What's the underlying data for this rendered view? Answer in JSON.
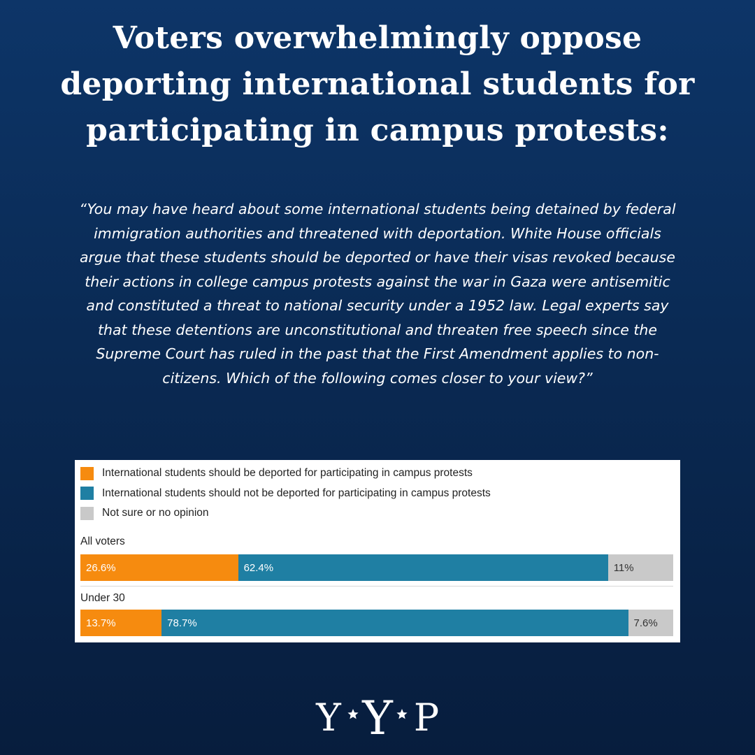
{
  "title": "Voters overwhelmingly oppose deporting international students for participating in campus protests:",
  "question": "“You may have heard about some international students being detained by federal immigration authorities and threatened with deportation. White House officials argue that these students should be deported or have their visas revoked because their actions in college campus protests against the war in Gaza were antisemitic and constituted a threat to national security under a 1952 law. Legal experts say that these detentions are unconstitutional and threaten free speech since the Supreme Court has ruled in the past that the First Amendment applies to non-citizens. Which of the following comes closer to your view?”",
  "chart_data": {
    "type": "bar",
    "orientation": "horizontal-stacked",
    "legend_position": "top-left",
    "series": [
      {
        "name": "International students should be deported for participating in campus protests",
        "color": "#f68b0f",
        "values": [
          26.6,
          13.7
        ],
        "labels": [
          "26.6%",
          "13.7%"
        ]
      },
      {
        "name": "International students should not be deported for participating in campus protests",
        "color": "#1f7fa3",
        "values": [
          62.4,
          78.7
        ],
        "labels": [
          "62.4%",
          "78.7%"
        ]
      },
      {
        "name": "Not sure or no opinion",
        "color": "#c9c9c9",
        "values": [
          11,
          7.6
        ],
        "labels": [
          "11%",
          "7.6%"
        ]
      }
    ],
    "categories": [
      "All voters",
      "Under 30"
    ],
    "unit": "%"
  },
  "logo": {
    "text_left": "Y",
    "text_center": "Y",
    "text_right": "P",
    "icon": "star-icon",
    "color": "#ffffff"
  }
}
